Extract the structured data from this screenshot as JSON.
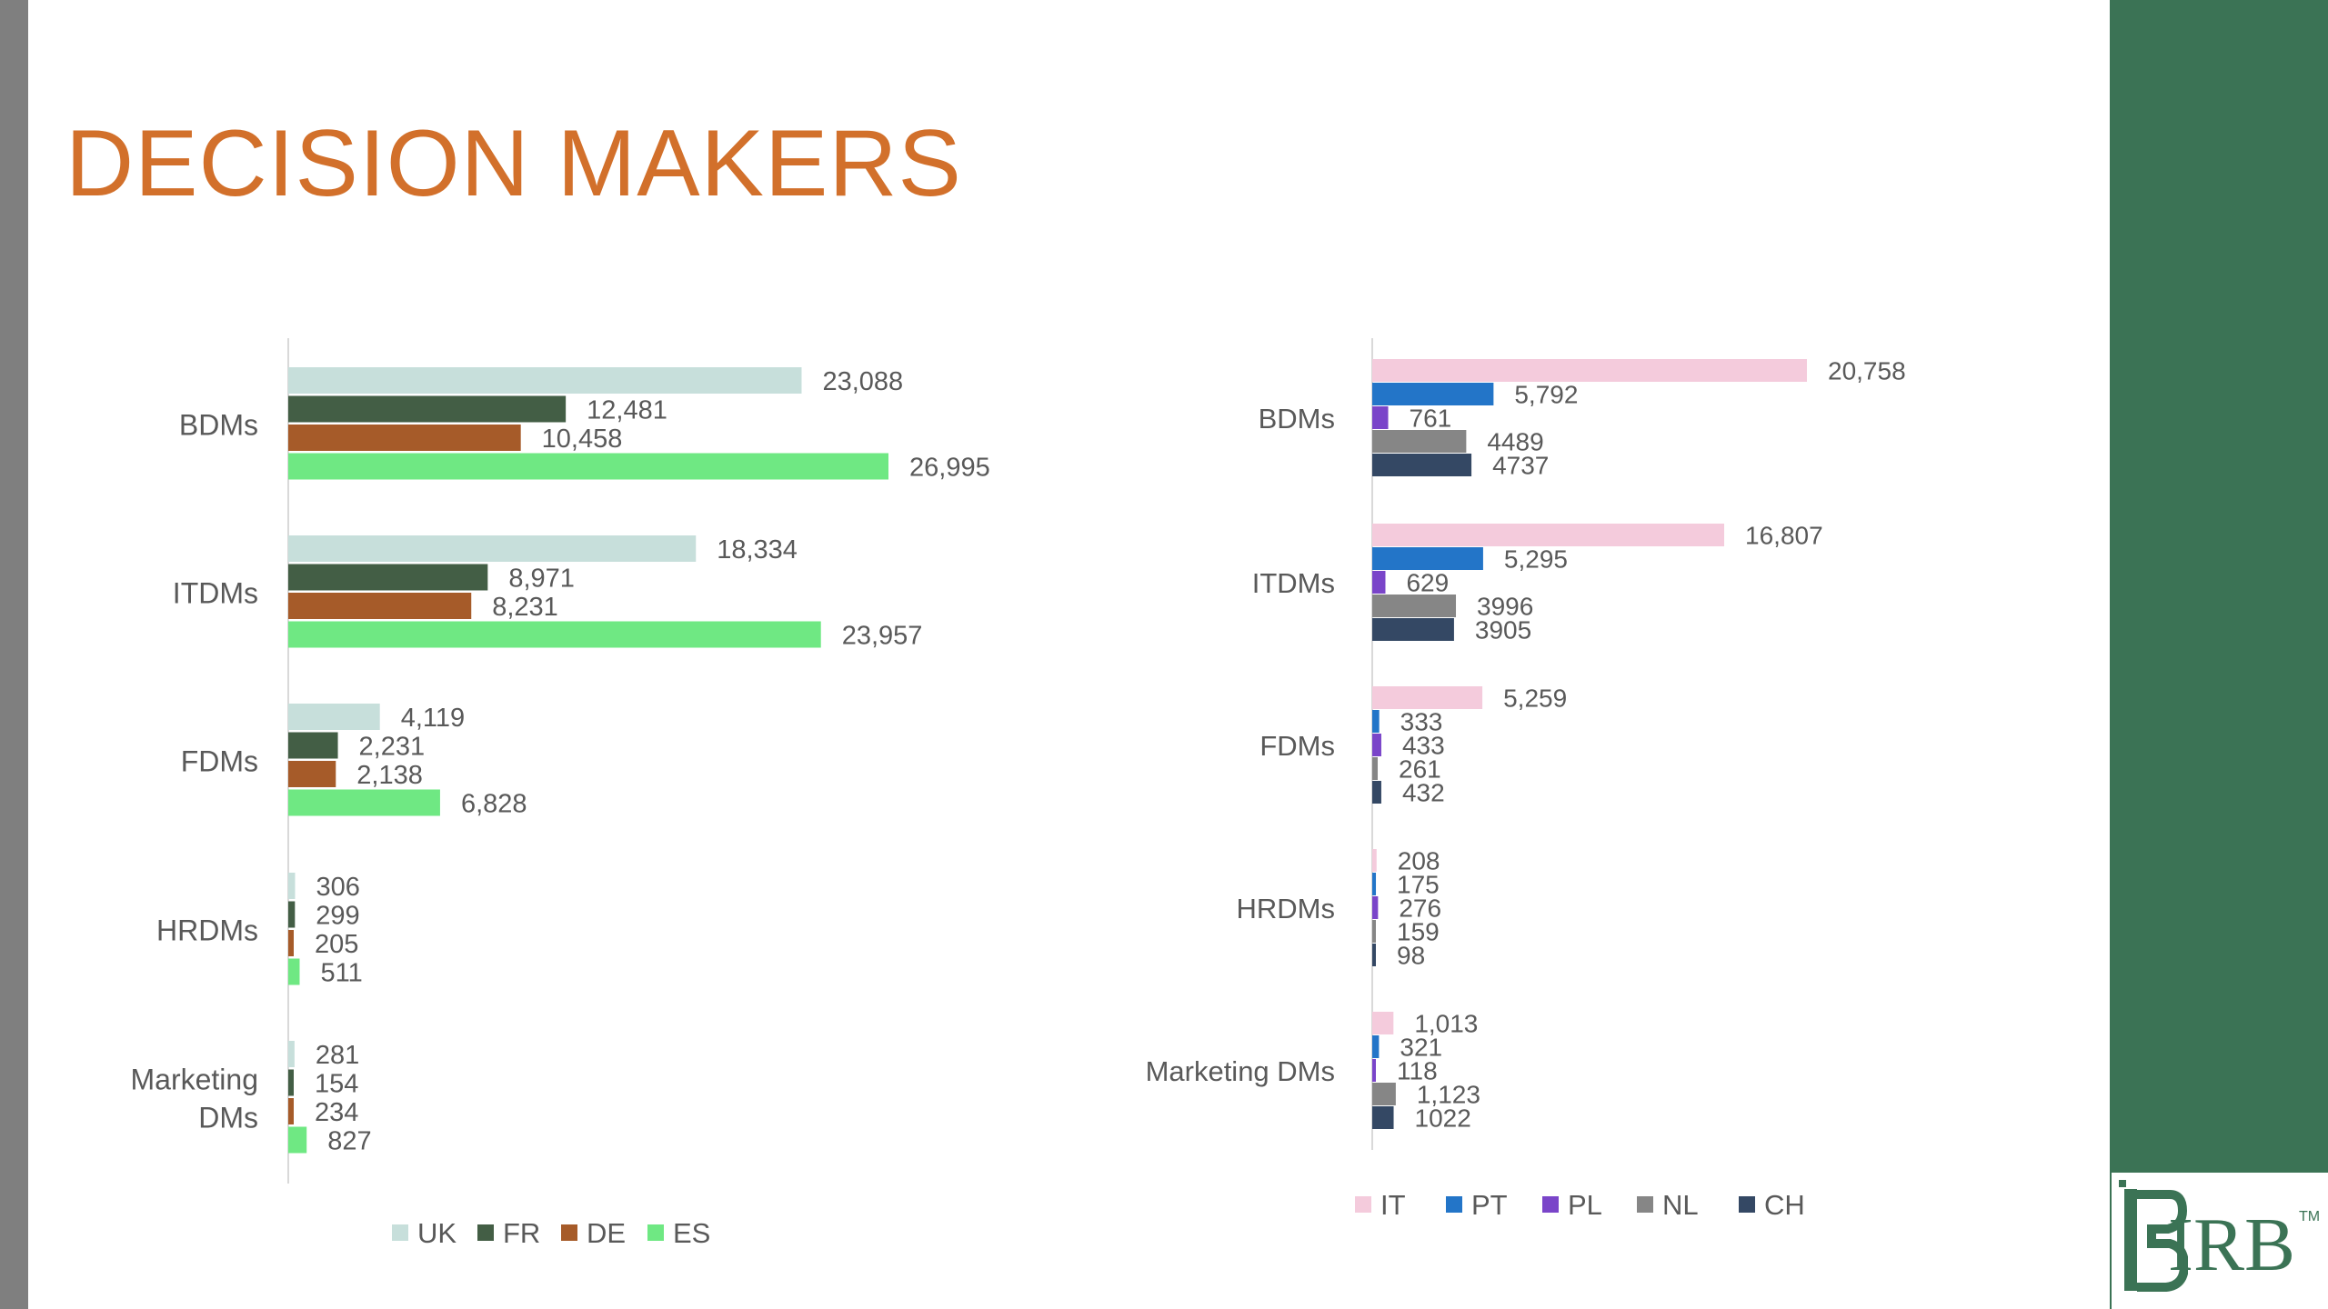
{
  "page": {
    "title": "DECISION MAKERS"
  },
  "colors": {
    "title": "#d2702b",
    "side_panel": "#3b7355",
    "left_edge": "#7f7f7f"
  },
  "logo": {
    "text": "IRB",
    "tm": "TM",
    "icon": "irb-logo-icon"
  },
  "chart_data": [
    {
      "type": "bar",
      "orientation": "horizontal",
      "categories": [
        "BDMs",
        "ITDMs",
        "FDMs",
        "HRDMs",
        "Marketing DMs"
      ],
      "category_labels": [
        [
          "BDMs"
        ],
        [
          "ITDMs"
        ],
        [
          "FDMs"
        ],
        [
          "HRDMs"
        ],
        [
          "Marketing",
          "DMs"
        ]
      ],
      "series": [
        {
          "name": "UK",
          "color": "#c7dfdb",
          "values": [
            23088,
            18334,
            4119,
            306,
            281
          ],
          "labels": [
            "23,088",
            "18,334",
            "4,119",
            "306",
            "281"
          ]
        },
        {
          "name": "FR",
          "color": "#435e45",
          "values": [
            12481,
            8971,
            2231,
            299,
            154
          ],
          "labels": [
            "12,481",
            "8,971",
            "2,231",
            "299",
            "154"
          ]
        },
        {
          "name": "DE",
          "color": "#a65b29",
          "values": [
            10458,
            8231,
            2138,
            205,
            234
          ],
          "labels": [
            "10,458",
            "8,231",
            "2,138",
            "205",
            "234"
          ]
        },
        {
          "name": "ES",
          "color": "#6fe883",
          "values": [
            26995,
            23957,
            6828,
            511,
            827
          ],
          "labels": [
            "26,995",
            "23,957",
            "6,828",
            "511",
            "827"
          ]
        }
      ],
      "legend": "bottom",
      "grid": false
    },
    {
      "type": "bar",
      "orientation": "horizontal",
      "categories": [
        "BDMs",
        "ITDMs",
        "FDMs",
        "HRDMs",
        "Marketing DMs"
      ],
      "category_labels": [
        [
          "BDMs"
        ],
        [
          "ITDMs"
        ],
        [
          "FDMs"
        ],
        [
          "HRDMs"
        ],
        [
          "Marketing DMs"
        ]
      ],
      "series": [
        {
          "name": "IT",
          "color": "#f4cbdc",
          "values": [
            20758,
            16807,
            5259,
            208,
            1013
          ],
          "labels": [
            "20,758",
            "16,807",
            "5,259",
            "208",
            "1,013"
          ]
        },
        {
          "name": "PT",
          "color": "#2375c8",
          "values": [
            5792,
            5295,
            333,
            175,
            321
          ],
          "labels": [
            "5,792",
            "5,295",
            "333",
            "175",
            "321"
          ]
        },
        {
          "name": "PL",
          "color": "#7a45c9",
          "values": [
            761,
            629,
            433,
            276,
            118
          ],
          "labels": [
            "761",
            "629",
            "433",
            "276",
            "118"
          ]
        },
        {
          "name": "NL",
          "color": "#868686",
          "values": [
            4489,
            3996,
            261,
            159,
            1123
          ],
          "labels": [
            "4489",
            "3996",
            "261",
            "159",
            "1,123"
          ]
        },
        {
          "name": "CH",
          "color": "#344864",
          "values": [
            4737,
            3905,
            432,
            98,
            1022
          ],
          "labels": [
            "4737",
            "3905",
            "432",
            "98",
            "1022"
          ]
        }
      ],
      "legend": "bottom",
      "grid": false
    }
  ]
}
